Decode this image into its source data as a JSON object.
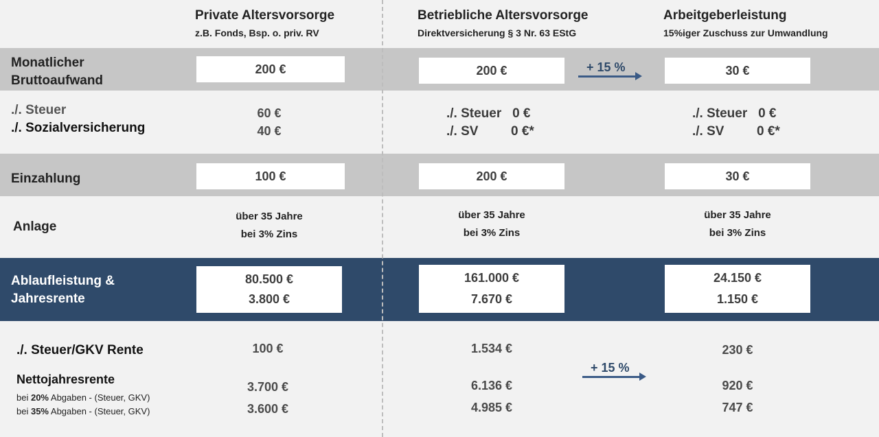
{
  "columns": [
    {
      "title": "Private Altersvorsorge",
      "subtitle": "z.B. Fonds, Bsp. o. priv. RV"
    },
    {
      "title": "Betriebliche Altersvorsorge",
      "subtitle": "Direktversicherung § 3 Nr. 63 EStG"
    },
    {
      "title": "Arbeitgeberleistung",
      "subtitle": "15%iger  Zuschuss zur Umwandlung"
    }
  ],
  "rows": {
    "brutto": {
      "label_line1": "Monatlicher",
      "label_line2": "Bruttoaufwand",
      "values": [
        "200 €",
        "200 €",
        "30 €"
      ]
    },
    "abzuege": {
      "label_line1": "./. Steuer",
      "label_line2": "./. Sozialversicherung",
      "private_steuer": "60 €",
      "private_sv": "40 €",
      "bav_steuer": "./. Steuer   0 €",
      "bav_sv": "./. SV         0 €*",
      "ag_steuer": "./. Steuer   0 €",
      "ag_sv": "./. SV         0 €*"
    },
    "einzahlung": {
      "label": "Einzahlung",
      "values": [
        "100 €",
        "200 €",
        "30 €"
      ]
    },
    "anlage": {
      "label": "Anlage",
      "line1": "über 35 Jahre",
      "line2": "bei 3% Zins"
    },
    "ablauf": {
      "label_line1": "Ablaufleistung &",
      "label_line2": "Jahresrente",
      "capital": [
        "80.500 €",
        "161.000 €",
        "24.150 €"
      ],
      "rente": [
        "3.800 €",
        "7.670 €",
        "1.150 €"
      ]
    },
    "netto": {
      "steuer_label": "./. Steuer/GKV Rente",
      "steuer_values": [
        "100 €",
        "1.534 €",
        "230 €"
      ],
      "netto_label": "Nettojahresrente",
      "note1_prefix": "bei ",
      "note1_bold": "20%",
      "note1_suffix": " Abgaben -  (Steuer, GKV)",
      "note2_prefix": "bei ",
      "note2_bold": "35%",
      "note2_suffix": " Abgaben - (Steuer, GKV)",
      "at20": [
        "3.700 €",
        "6.136 €",
        "920 €"
      ],
      "at35": [
        "3.600 €",
        "4.985 €",
        "747 €"
      ]
    }
  },
  "arrows": {
    "top_label": "+ 15 %",
    "bottom_label": "+ 15 %"
  },
  "colors": {
    "gray_band": "#c6c6c6",
    "navy_band": "#2f4a6a",
    "arrow": "#3a5a86",
    "background": "#f2f2f2"
  }
}
